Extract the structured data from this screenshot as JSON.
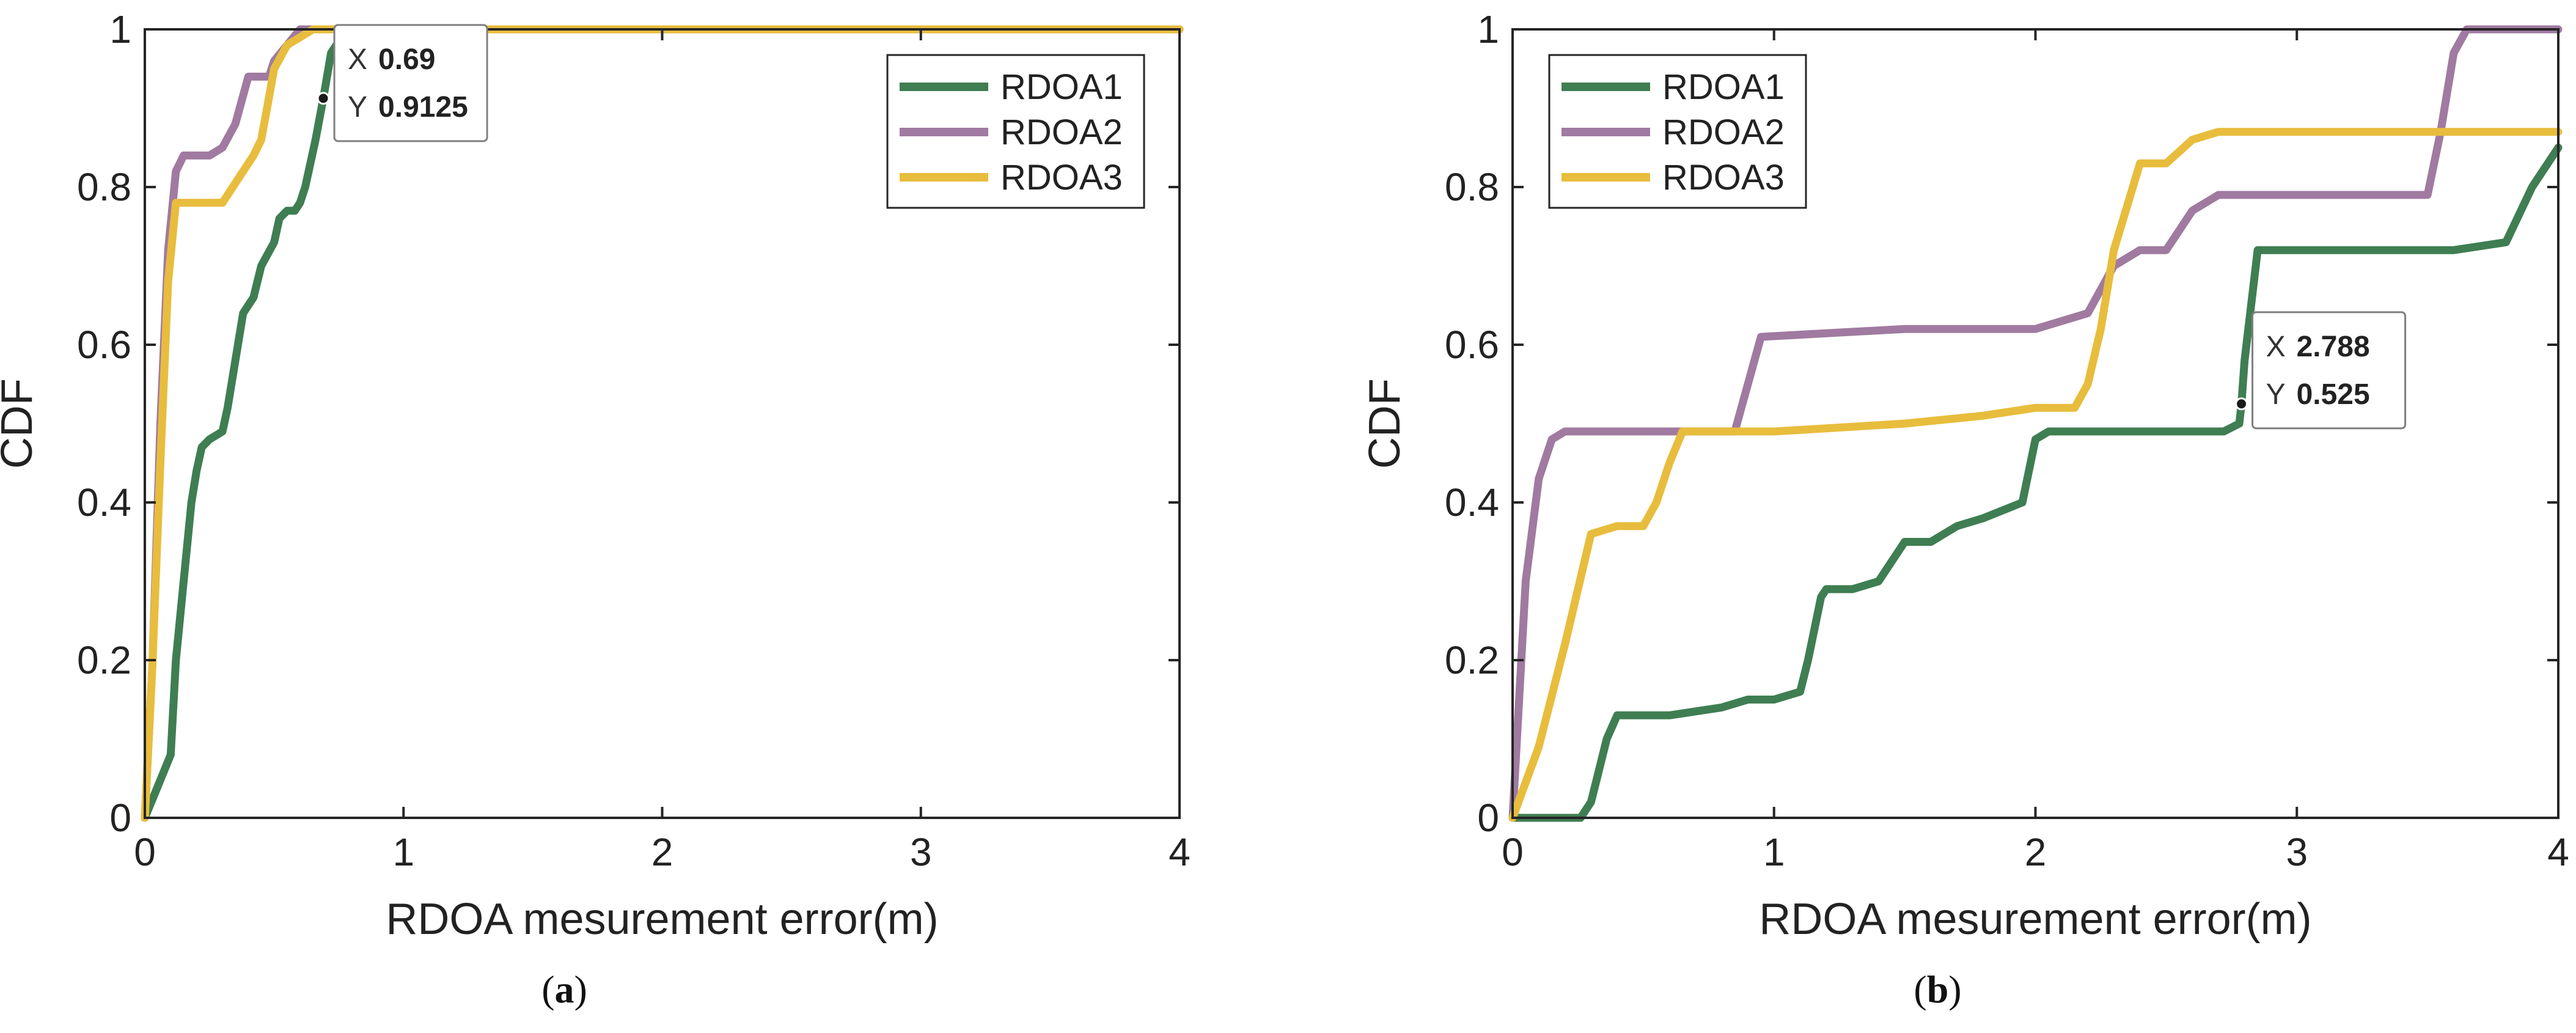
{
  "figure": {
    "panels": [
      {
        "label_prefix": "(",
        "label_letter": "a",
        "label_suffix": ")"
      },
      {
        "label_prefix": "(",
        "label_letter": "b",
        "label_suffix": ")"
      }
    ]
  },
  "chart_data": [
    {
      "type": "line",
      "title": "",
      "xlabel": "RDOA mesurement error(m)",
      "ylabel": "CDF",
      "xlim": [
        0,
        4
      ],
      "ylim": [
        0,
        1
      ],
      "xticks": [
        0,
        1,
        2,
        3,
        4
      ],
      "xtick_labels": [
        "0",
        "1",
        "2",
        "3",
        "4"
      ],
      "yticks": [
        0,
        0.2,
        0.4,
        0.6,
        0.8,
        1
      ],
      "ytick_labels": [
        "0",
        "0.2",
        "0.4",
        "0.6",
        "0.8",
        "1"
      ],
      "grid": false,
      "legend_location": "top-right",
      "series": [
        {
          "name": "RDOA1",
          "color": "#3f7e52",
          "x": [
            0,
            0.05,
            0.1,
            0.12,
            0.15,
            0.18,
            0.2,
            0.22,
            0.25,
            0.3,
            0.32,
            0.35,
            0.38,
            0.4,
            0.42,
            0.45,
            0.5,
            0.52,
            0.55,
            0.58,
            0.6,
            0.62,
            0.66,
            0.69,
            0.72,
            0.76,
            0.8,
            0.9,
            1.0,
            1.03,
            4.0
          ],
          "y": [
            0,
            0.04,
            0.08,
            0.2,
            0.3,
            0.4,
            0.44,
            0.47,
            0.48,
            0.49,
            0.52,
            0.58,
            0.64,
            0.65,
            0.66,
            0.7,
            0.73,
            0.76,
            0.77,
            0.77,
            0.78,
            0.8,
            0.86,
            0.9125,
            0.97,
            0.99,
            0.99,
            0.99,
            0.995,
            1.0,
            1.0
          ]
        },
        {
          "name": "RDOA2",
          "color": "#a07aa0",
          "x": [
            0,
            0.03,
            0.06,
            0.09,
            0.12,
            0.15,
            0.18,
            0.25,
            0.3,
            0.35,
            0.4,
            0.48,
            0.5,
            0.55,
            0.6,
            4.0
          ],
          "y": [
            0,
            0.2,
            0.5,
            0.72,
            0.82,
            0.84,
            0.84,
            0.84,
            0.85,
            0.88,
            0.94,
            0.94,
            0.96,
            0.98,
            1.0,
            1.0
          ]
        },
        {
          "name": "RDOA3",
          "color": "#e8bd3d",
          "x": [
            0,
            0.03,
            0.06,
            0.09,
            0.12,
            0.15,
            0.2,
            0.3,
            0.34,
            0.38,
            0.42,
            0.45,
            0.5,
            0.55,
            0.6,
            0.65,
            4.0
          ],
          "y": [
            0,
            0.2,
            0.45,
            0.68,
            0.78,
            0.78,
            0.78,
            0.78,
            0.8,
            0.82,
            0.84,
            0.86,
            0.95,
            0.98,
            0.99,
            1.0,
            1.0
          ]
        }
      ],
      "annotations": [
        {
          "x": 0.69,
          "y": 0.9125,
          "x_label": "X",
          "y_label": "Y",
          "x_value": "0.69",
          "y_value": "0.9125"
        }
      ]
    },
    {
      "type": "line",
      "title": "",
      "xlabel": "RDOA mesurement error(m)",
      "ylabel": "CDF",
      "xlim": [
        0,
        4
      ],
      "ylim": [
        0,
        1
      ],
      "xticks": [
        0,
        1,
        2,
        3,
        4
      ],
      "xtick_labels": [
        "0",
        "1",
        "2",
        "3",
        "4"
      ],
      "yticks": [
        0,
        0.2,
        0.4,
        0.6,
        0.8,
        1
      ],
      "ytick_labels": [
        "0",
        "0.2",
        "0.4",
        "0.6",
        "0.8",
        "1"
      ],
      "grid": false,
      "legend_location": "top-left",
      "series": [
        {
          "name": "RDOA1",
          "color": "#3f7e52",
          "x": [
            0,
            0.26,
            0.3,
            0.33,
            0.36,
            0.4,
            0.6,
            0.8,
            0.9,
            1.0,
            1.1,
            1.13,
            1.18,
            1.2,
            1.3,
            1.4,
            1.5,
            1.6,
            1.7,
            1.8,
            1.95,
            2.0,
            2.05,
            2.2,
            2.4,
            2.6,
            2.72,
            2.78,
            2.788,
            2.8,
            2.85,
            3.0,
            3.2,
            3.6,
            3.8,
            3.9,
            4.0
          ],
          "y": [
            0,
            0,
            0.02,
            0.06,
            0.1,
            0.13,
            0.13,
            0.14,
            0.15,
            0.15,
            0.16,
            0.2,
            0.28,
            0.29,
            0.29,
            0.3,
            0.35,
            0.35,
            0.37,
            0.38,
            0.4,
            0.48,
            0.49,
            0.49,
            0.49,
            0.49,
            0.49,
            0.5,
            0.525,
            0.58,
            0.72,
            0.72,
            0.72,
            0.72,
            0.73,
            0.8,
            0.85
          ]
        },
        {
          "name": "RDOA2",
          "color": "#a07aa0",
          "x": [
            0,
            0.05,
            0.1,
            0.15,
            0.2,
            0.85,
            0.9,
            0.95,
            1.5,
            2.0,
            2.2,
            2.3,
            2.4,
            2.5,
            2.6,
            2.7,
            3.5,
            3.55,
            3.6,
            3.65,
            4.0
          ],
          "y": [
            0,
            0.3,
            0.43,
            0.48,
            0.49,
            0.49,
            0.55,
            0.61,
            0.62,
            0.62,
            0.64,
            0.7,
            0.72,
            0.72,
            0.77,
            0.79,
            0.79,
            0.87,
            0.97,
            1.0,
            1.0
          ]
        },
        {
          "name": "RDOA3",
          "color": "#e8bd3d",
          "x": [
            0,
            0.1,
            0.2,
            0.3,
            0.4,
            0.5,
            0.55,
            0.6,
            0.65,
            1.0,
            1.5,
            1.8,
            2.0,
            2.15,
            2.2,
            2.25,
            2.3,
            2.4,
            2.5,
            2.6,
            2.7,
            4.0
          ],
          "y": [
            0,
            0.09,
            0.22,
            0.36,
            0.37,
            0.37,
            0.4,
            0.45,
            0.49,
            0.49,
            0.5,
            0.51,
            0.52,
            0.52,
            0.55,
            0.62,
            0.72,
            0.83,
            0.83,
            0.86,
            0.87,
            0.87
          ]
        }
      ],
      "annotations": [
        {
          "x": 2.788,
          "y": 0.525,
          "x_label": "X",
          "y_label": "Y",
          "x_value": "2.788",
          "y_value": "0.525"
        }
      ]
    }
  ],
  "colors": {
    "axis": "#262626",
    "tooltip_value": "#1f8fe6",
    "tooltip_bg": "#ffffff",
    "tooltip_border": "#7f7f7f",
    "marker": "#1a1a1a"
  }
}
